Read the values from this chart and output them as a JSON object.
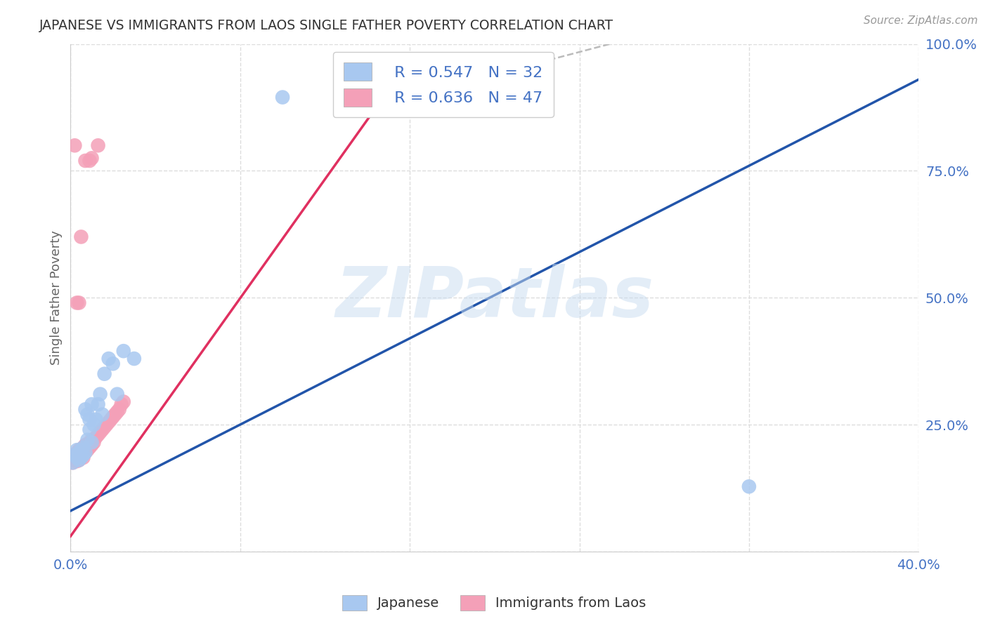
{
  "title": "JAPANESE VS IMMIGRANTS FROM LAOS SINGLE FATHER POVERTY CORRELATION CHART",
  "source": "Source: ZipAtlas.com",
  "ylabel": "Single Father Poverty",
  "watermark": "ZIPatlas",
  "xlim": [
    0.0,
    0.4
  ],
  "ylim": [
    0.0,
    1.0
  ],
  "yticks": [
    0.0,
    0.25,
    0.5,
    0.75,
    1.0
  ],
  "ytick_labels": [
    "",
    "25.0%",
    "50.0%",
    "75.0%",
    "100.0%"
  ],
  "xticks": [
    0.0,
    0.08,
    0.16,
    0.24,
    0.32,
    0.4
  ],
  "xtick_labels": [
    "0.0%",
    "",
    "",
    "",
    "",
    "40.0%"
  ],
  "legend_r1": "R = 0.547",
  "legend_n1": "N = 32",
  "legend_r2": "R = 0.636",
  "legend_n2": "N = 47",
  "color_japanese": "#A8C8F0",
  "color_laos": "#F4A0B8",
  "color_blue_line": "#2255AA",
  "color_pink_line": "#E03060",
  "color_axis_blue": "#4472C4",
  "color_dashed": "#BBBBBB",
  "japanese_x": [
    0.001,
    0.002,
    0.003,
    0.003,
    0.004,
    0.004,
    0.005,
    0.005,
    0.006,
    0.006,
    0.007,
    0.007,
    0.008,
    0.008,
    0.009,
    0.009,
    0.01,
    0.01,
    0.011,
    0.012,
    0.013,
    0.014,
    0.015,
    0.016,
    0.018,
    0.02,
    0.022,
    0.025,
    0.03,
    0.1,
    0.13,
    0.32
  ],
  "japanese_y": [
    0.175,
    0.19,
    0.185,
    0.2,
    0.18,
    0.195,
    0.185,
    0.2,
    0.19,
    0.205,
    0.195,
    0.28,
    0.22,
    0.27,
    0.24,
    0.26,
    0.215,
    0.29,
    0.25,
    0.26,
    0.29,
    0.31,
    0.27,
    0.35,
    0.38,
    0.37,
    0.31,
    0.395,
    0.38,
    0.895,
    0.895,
    0.128
  ],
  "laos_x": [
    0.001,
    0.001,
    0.002,
    0.002,
    0.003,
    0.003,
    0.003,
    0.004,
    0.004,
    0.004,
    0.005,
    0.005,
    0.005,
    0.006,
    0.006,
    0.006,
    0.007,
    0.007,
    0.008,
    0.008,
    0.009,
    0.009,
    0.01,
    0.01,
    0.011,
    0.012,
    0.013,
    0.014,
    0.015,
    0.016,
    0.017,
    0.018,
    0.019,
    0.02,
    0.021,
    0.022,
    0.023,
    0.024,
    0.025,
    0.003,
    0.004,
    0.005,
    0.01,
    0.013,
    0.002,
    0.009,
    0.007
  ],
  "laos_y": [
    0.175,
    0.185,
    0.18,
    0.19,
    0.178,
    0.19,
    0.195,
    0.18,
    0.185,
    0.2,
    0.185,
    0.195,
    0.2,
    0.185,
    0.2,
    0.205,
    0.195,
    0.21,
    0.2,
    0.21,
    0.205,
    0.215,
    0.21,
    0.22,
    0.215,
    0.225,
    0.23,
    0.235,
    0.24,
    0.245,
    0.25,
    0.255,
    0.26,
    0.265,
    0.27,
    0.275,
    0.28,
    0.29,
    0.295,
    0.49,
    0.49,
    0.62,
    0.775,
    0.8,
    0.8,
    0.77,
    0.77
  ],
  "blue_line_x": [
    0.0,
    0.4
  ],
  "blue_line_y": [
    0.08,
    0.93
  ],
  "pink_line_x": [
    0.0,
    0.145
  ],
  "pink_line_y": [
    0.03,
    0.88
  ],
  "dashed_line_x": [
    0.145,
    0.3
  ],
  "dashed_line_y": [
    0.88,
    1.05
  ]
}
